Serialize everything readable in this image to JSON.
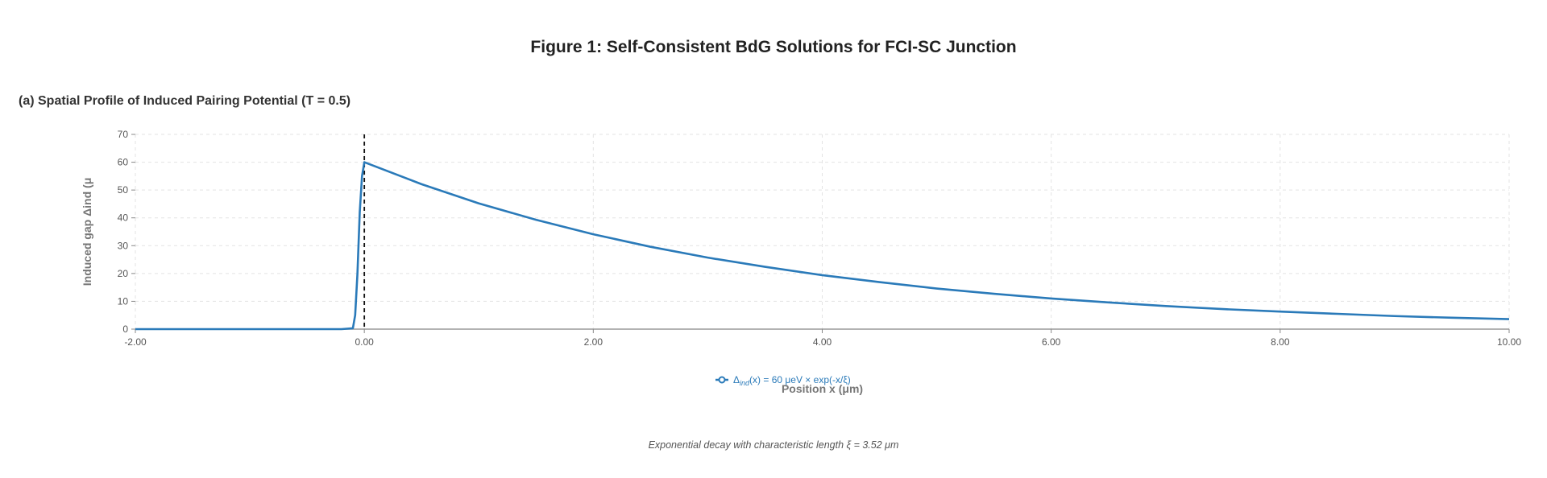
{
  "figure": {
    "title": "Figure 1: Self-Consistent BdG Solutions for FCI-SC Junction",
    "caption": "Exponential decay with characteristic length ξ = 3.52 μm"
  },
  "panel": {
    "title": "(a) Spatial Profile of Induced Pairing Potential (T = 0.5)"
  },
  "chart_data": {
    "type": "line",
    "title": "(a) Spatial Profile of Induced Pairing Potential (T = 0.5)",
    "xlabel": "Position x (μm)",
    "ylabel": "Induced gap Δind (μ",
    "xlim": [
      -2,
      10
    ],
    "ylim": [
      0,
      70
    ],
    "x_ticks": [
      -2,
      0,
      2,
      4,
      6,
      8,
      10
    ],
    "x_tick_labels": [
      "-2.00",
      "0.00",
      "2.00",
      "4.00",
      "6.00",
      "8.00",
      "10.00"
    ],
    "y_ticks": [
      0,
      10,
      20,
      30,
      40,
      50,
      60,
      70
    ],
    "y_tick_labels": [
      "0",
      "10",
      "20",
      "30",
      "40",
      "50",
      "60",
      "70"
    ],
    "grid": true,
    "legend_position": "bottom-center",
    "interface_line_x": 0,
    "series": [
      {
        "name": "Δind(x) = 60 μeV × exp(-x/ξ)",
        "legend_prefix": "Δ",
        "legend_subscript": "ind",
        "legend_suffix": "(x) = 60 μeV × exp(-x/ξ)",
        "color": "#2a7ab9",
        "x": [
          -2,
          -1,
          -0.5,
          -0.2,
          -0.1,
          -0.08,
          -0.06,
          -0.04,
          -0.02,
          0,
          0.5,
          1,
          1.5,
          2,
          2.5,
          3,
          3.5,
          4,
          4.5,
          5,
          5.5,
          6,
          6.5,
          7,
          7.5,
          8,
          8.5,
          9,
          9.5,
          10
        ],
        "values": [
          0,
          0,
          0,
          0,
          0.3,
          5,
          20,
          42,
          55,
          60,
          52.1,
          45.2,
          39.3,
          34.1,
          29.6,
          25.7,
          22.4,
          19.4,
          16.9,
          14.6,
          12.7,
          11.0,
          9.6,
          8.3,
          7.2,
          6.3,
          5.5,
          4.7,
          4.1,
          3.6
        ]
      }
    ]
  }
}
